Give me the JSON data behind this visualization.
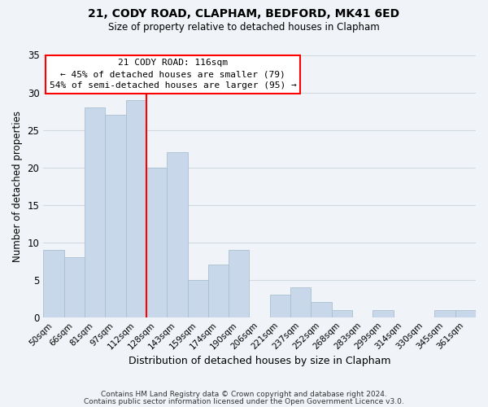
{
  "title": "21, CODY ROAD, CLAPHAM, BEDFORD, MK41 6ED",
  "subtitle": "Size of property relative to detached houses in Clapham",
  "xlabel": "Distribution of detached houses by size in Clapham",
  "ylabel": "Number of detached properties",
  "footer_lines": [
    "Contains HM Land Registry data © Crown copyright and database right 2024.",
    "Contains public sector information licensed under the Open Government Licence v3.0."
  ],
  "bin_labels": [
    "50sqm",
    "66sqm",
    "81sqm",
    "97sqm",
    "112sqm",
    "128sqm",
    "143sqm",
    "159sqm",
    "174sqm",
    "190sqm",
    "206sqm",
    "221sqm",
    "237sqm",
    "252sqm",
    "268sqm",
    "283sqm",
    "299sqm",
    "314sqm",
    "330sqm",
    "345sqm",
    "361sqm"
  ],
  "bar_values": [
    9,
    8,
    28,
    27,
    29,
    20,
    22,
    5,
    7,
    9,
    0,
    3,
    4,
    2,
    1,
    0,
    1,
    0,
    0,
    1,
    1
  ],
  "bar_color": "#c8d8ea",
  "bar_edge_color": "#a8c0d0",
  "annotation_line_color": "red",
  "annotation_text_line1": "21 CODY ROAD: 116sqm",
  "annotation_text_line2": "← 45% of detached houses are smaller (79)",
  "annotation_text_line3": "54% of semi-detached houses are larger (95) →",
  "annotation_box_edge_color": "red",
  "annotation_box_face_color": "white",
  "ylim": [
    0,
    35
  ],
  "yticks": [
    0,
    5,
    10,
    15,
    20,
    25,
    30,
    35
  ],
  "grid_color": "#d0d8e0",
  "background_color": "#f0f4f8",
  "vertical_line_bin_index": 4
}
